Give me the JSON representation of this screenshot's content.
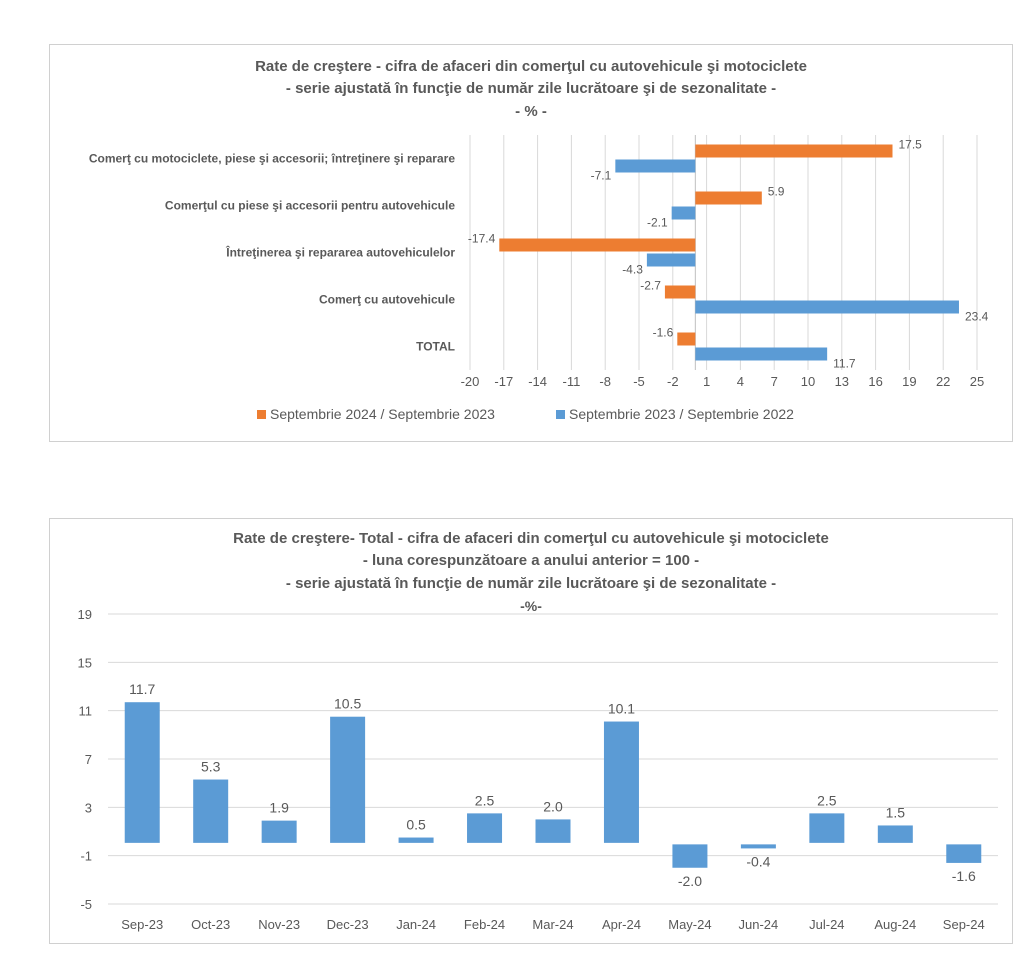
{
  "colors": {
    "orange": "#ED7D31",
    "blue": "#5B9BD5",
    "grid": "#d9d9d9",
    "text": "#595959"
  },
  "chart_data": [
    {
      "type": "bar",
      "orientation": "horizontal",
      "title": "Rate de creştere - cifra de afaceri din comerţul cu autovehicule şi motociclete",
      "subtitle": "- serie ajustată în funcţie de număr zile lucrătoare şi de sezonalitate -",
      "unit": "- % -",
      "categories": [
        "Comerţ cu motociclete, piese şi accesorii; întreţinere şi reparare",
        "Comerţul cu piese şi accesorii pentru autovehicule",
        "Întreţinerea şi repararea autovehiculelor",
        "Comerţ cu autovehicule",
        "TOTAL"
      ],
      "series": [
        {
          "name": "Septembrie 2024 / Septembrie 2023",
          "values": [
            17.5,
            5.9,
            -17.4,
            -2.7,
            -1.6
          ],
          "labels": [
            "17.5",
            "5.9",
            "-17.4",
            "-2.7",
            "-1.6"
          ]
        },
        {
          "name": "Septembrie 2023 / Septembrie 2022",
          "values": [
            -7.1,
            -2.1,
            -4.3,
            23.4,
            11.7
          ],
          "labels": [
            "-7.1",
            "-2.1",
            "-4.3",
            "23.4",
            "11.7"
          ]
        }
      ],
      "xticks": [
        "-20",
        "-17",
        "-14",
        "-11",
        "-8",
        "-5",
        "-2",
        "1",
        "4",
        "7",
        "10",
        "13",
        "16",
        "19",
        "22",
        "25"
      ],
      "xlim": [
        -20,
        25
      ],
      "grid": true,
      "legend": "bottom"
    },
    {
      "type": "bar",
      "title": "Rate de creştere- Total - cifra de afaceri din comerţul cu autovehicule şi motociclete",
      "subtitle": "- luna corespunzătoare a anului anterior = 100 -",
      "subtitle2": "- serie ajustată în funcţie de număr zile lucrătoare şi de sezonalitate -",
      "unit": "-%-",
      "categories": [
        "Sep-23",
        "Oct-23",
        "Nov-23",
        "Dec-23",
        "Jan-24",
        "Feb-24",
        "Mar-24",
        "Apr-24",
        "May-24",
        "Jun-24",
        "Jul-24",
        "Aug-24",
        "Sep-24"
      ],
      "values": [
        11.7,
        5.3,
        1.9,
        10.5,
        0.5,
        2.5,
        2.0,
        10.1,
        -2.0,
        -0.4,
        2.5,
        1.5,
        -1.6
      ],
      "labels": [
        "11.7",
        "5.3",
        "1.9",
        "10.5",
        "0.5",
        "2.5",
        "2.0",
        "10.1",
        "-2.0",
        "-0.4",
        "2.5",
        "1.5",
        "-1.6"
      ],
      "yticks": [
        "19",
        "15",
        "11",
        "7",
        "3",
        "-1",
        "-5"
      ],
      "ylim": [
        -5,
        19
      ],
      "grid": true
    }
  ]
}
